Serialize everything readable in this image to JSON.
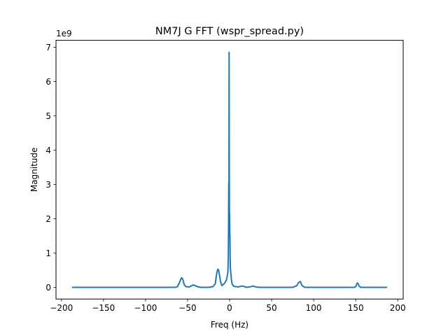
{
  "chart_data": {
    "type": "line",
    "title": "NM7J G FFT (wspr_spread.py)",
    "xlabel": "Freq (Hz)",
    "ylabel": "Magnitude",
    "y_offset_label": "1e9",
    "xlim": [
      -206.5,
      206.5
    ],
    "ylim": [
      -0.34,
      7.2
    ],
    "xticks": [
      -200,
      -150,
      -100,
      -50,
      0,
      50,
      100,
      150,
      200
    ],
    "xtick_labels": [
      "−200",
      "−150",
      "−100",
      "−50",
      "0",
      "50",
      "100",
      "150",
      "200"
    ],
    "yticks": [
      0,
      1,
      2,
      3,
      4,
      5,
      6,
      7
    ],
    "ytick_labels": [
      "0",
      "1",
      "2",
      "3",
      "4",
      "5",
      "6",
      "7"
    ],
    "grid": false,
    "legend": "none",
    "color": "#1f77b4",
    "series": [
      {
        "x": [
          -187.5,
          -150,
          -100,
          -65,
          -62,
          -60,
          -58,
          -57,
          -56,
          -55,
          -54,
          -52,
          -48,
          -45,
          -43,
          -40,
          -37,
          -33,
          -25,
          -20,
          -17,
          -16,
          -15,
          -14,
          -13,
          -12,
          -11,
          -10,
          -9,
          -8,
          -6,
          -4,
          -3,
          -2,
          -1.6,
          -1.3,
          -1.0,
          -0.8,
          -0.6,
          -0.4,
          -0.2,
          0.0,
          0.2,
          0.4,
          0.6,
          0.8,
          1.0,
          1.5,
          2,
          3,
          5,
          8,
          10,
          13,
          15,
          18,
          20,
          25,
          28,
          30,
          35,
          50,
          75,
          80,
          82,
          84,
          85,
          86,
          88,
          90,
          100,
          130,
          148,
          150,
          151,
          152,
          153,
          154,
          156,
          160,
          187.5
        ],
        "y": [
          0.0,
          0.0,
          0.0,
          0.0,
          0.02,
          0.12,
          0.24,
          0.28,
          0.25,
          0.18,
          0.08,
          0.02,
          0.01,
          0.05,
          0.07,
          0.04,
          0.01,
          0.0,
          0.0,
          0.02,
          0.1,
          0.3,
          0.45,
          0.53,
          0.5,
          0.35,
          0.2,
          0.1,
          0.05,
          0.08,
          0.12,
          0.2,
          0.3,
          0.45,
          0.8,
          1.6,
          3.05,
          2.3,
          6.85,
          3.4,
          2.2,
          2.1,
          1.6,
          1.5,
          1.0,
          0.7,
          0.55,
          0.4,
          0.25,
          0.1,
          0.03,
          0.02,
          0.01,
          0.03,
          0.04,
          0.02,
          0.0,
          0.02,
          0.04,
          0.02,
          0.0,
          0.0,
          0.0,
          0.05,
          0.14,
          0.17,
          0.12,
          0.06,
          0.02,
          0.0,
          0.0,
          0.0,
          0.0,
          0.02,
          0.08,
          0.13,
          0.1,
          0.04,
          0.0,
          0.0,
          0.0
        ]
      }
    ]
  }
}
